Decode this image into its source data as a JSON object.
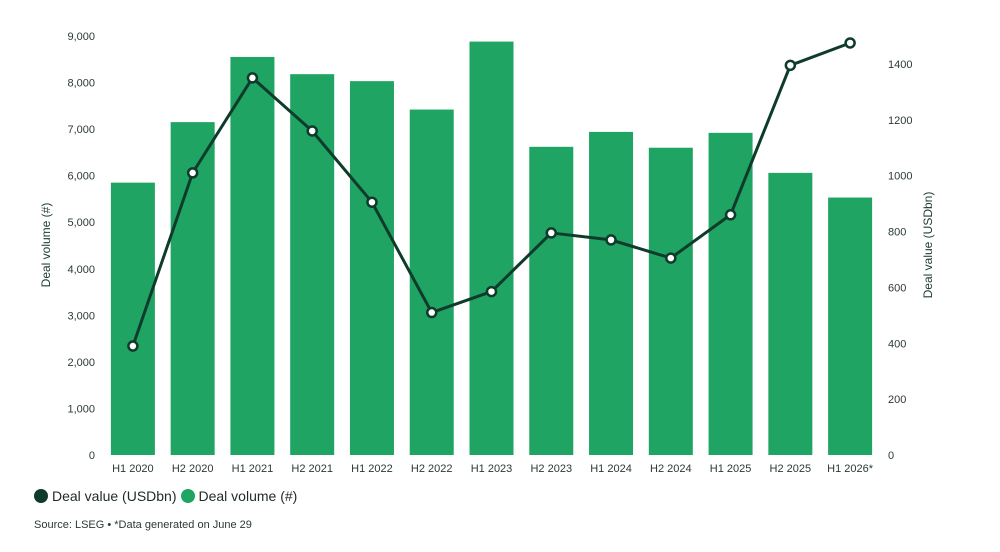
{
  "chart_data": {
    "type": "bar",
    "categories": [
      "H1 2020",
      "H2 2020",
      "H1 2021",
      "H2 2021",
      "H1 2022",
      "H2 2022",
      "H1 2023",
      "H2 2023",
      "H1 2024",
      "H2 2024",
      "H1 2025",
      "H2 2025",
      "H1 2026*"
    ],
    "series": [
      {
        "name": "Deal volume (#)",
        "type": "bar",
        "axis": "left",
        "color": "#1fa463",
        "values": [
          5850,
          7150,
          8550,
          8180,
          8030,
          7420,
          8880,
          6620,
          6940,
          6600,
          6920,
          6060,
          5530
        ]
      },
      {
        "name": "Deal value (USDbn)",
        "type": "line",
        "axis": "right",
        "color": "#0f3b2b",
        "values": [
          390,
          1010,
          1350,
          1160,
          905,
          510,
          585,
          795,
          770,
          705,
          860,
          1395,
          1475
        ]
      }
    ],
    "ylabel": "Deal volume (#)",
    "ylabel_right": "Deal value (USDbn)",
    "ylim": [
      0,
      9000
    ],
    "ylim_right": [
      0,
      1500
    ],
    "yticks": [
      "0",
      "1,000",
      "2,000",
      "3,000",
      "4,000",
      "5,000",
      "6,000",
      "7,000",
      "8,000",
      "9,000"
    ],
    "yticks_right": [
      "0",
      "200",
      "400",
      "600",
      "800",
      "1000",
      "1200",
      "1400"
    ],
    "grid": false,
    "legend_placement": "bottom-left"
  },
  "legend": {
    "items": [
      {
        "label": "Deal value (USDbn)",
        "color": "#0f3b2b"
      },
      {
        "label": "Deal volume (#)",
        "color": "#1fa463"
      }
    ]
  },
  "source": "Source: LSEG • *Data generated on June 29"
}
